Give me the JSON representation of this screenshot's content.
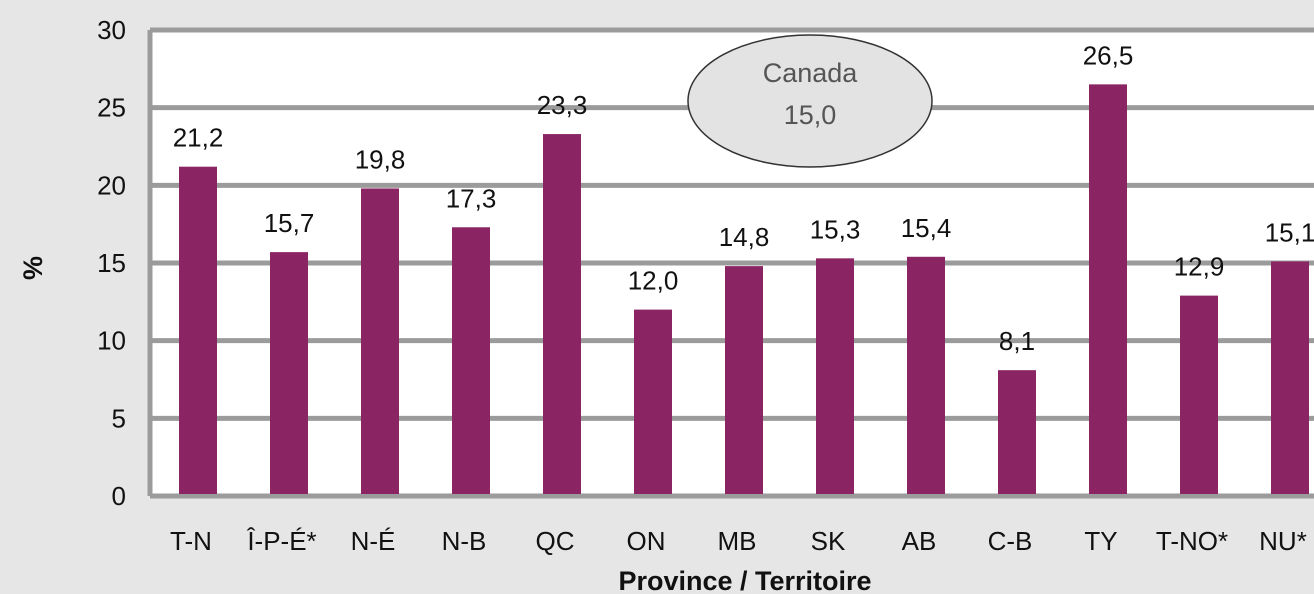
{
  "chart_data": {
    "type": "bar",
    "categories": [
      "T-N",
      "Î-P-É*",
      "N-É",
      "N-B",
      "QC",
      "ON",
      "MB",
      "SK",
      "AB",
      "C-B",
      "TY",
      "T-NO*",
      "NU*"
    ],
    "values": [
      21.2,
      15.7,
      19.8,
      17.3,
      23.3,
      12.0,
      14.8,
      15.3,
      15.4,
      8.1,
      26.5,
      12.9,
      15.1
    ],
    "value_labels": [
      "21,2",
      "15,7",
      "19,8",
      "17,3",
      "23,3",
      "12,0",
      "14,8",
      "15,3",
      "15,4",
      "8,1",
      "26,5",
      "12,9",
      "15,1"
    ],
    "ylim": [
      0,
      30
    ],
    "yticks": [
      "0",
      "5",
      "10",
      "15",
      "20",
      "25",
      "30"
    ],
    "xlabel": "Province / Territoire",
    "ylabel": "%",
    "grid": true,
    "annotation": {
      "line1": "Canada",
      "line2": "15,0"
    },
    "colors": {
      "bar": "#8b2463",
      "grid": "#9b9b9b",
      "plot_bg": "#ffffff",
      "page_bg": "#e6e6e6",
      "callout_bg": "#e3e3e3"
    }
  }
}
